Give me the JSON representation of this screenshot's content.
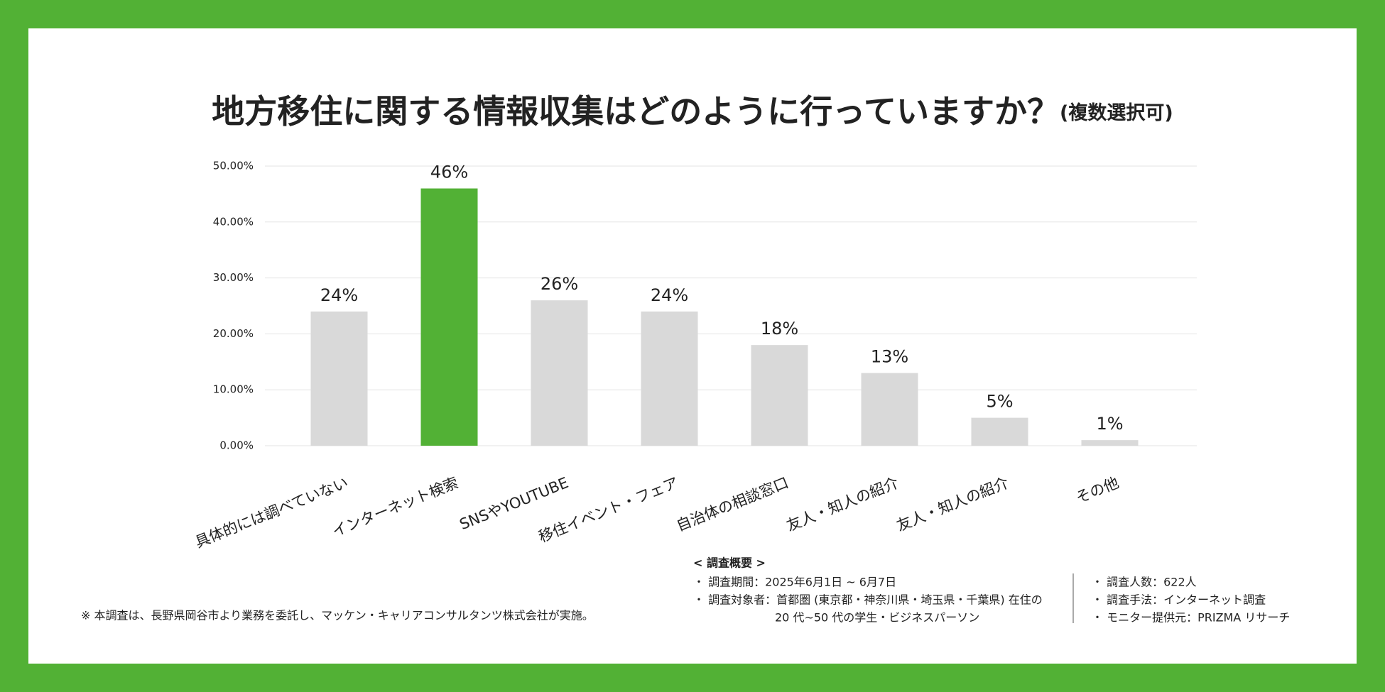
{
  "chart_data": {
    "type": "bar",
    "title": "地方移住に関する情報収集はどのように行っていますか？",
    "subtitle": "(複数選択可)",
    "categories": [
      "具体的には調べていない",
      "インターネット検索",
      "SNSやYOUTUBE",
      "移住イベント・フェア",
      "自治体の相談窓口",
      "友人・知人の紹介",
      "友人・知人の紹介",
      "その他"
    ],
    "values": [
      24,
      46,
      26,
      24,
      18,
      13,
      5,
      1
    ],
    "value_labels": [
      "24%",
      "46%",
      "26%",
      "24%",
      "18%",
      "13%",
      "5%",
      "1%"
    ],
    "colors": [
      "#d9d9d9",
      "#52b135",
      "#d9d9d9",
      "#d9d9d9",
      "#d9d9d9",
      "#d9d9d9",
      "#d9d9d9",
      "#d9d9d9"
    ],
    "ylim": [
      0,
      50
    ],
    "yticks": [
      {
        "value": 0,
        "label": "0.00%"
      },
      {
        "value": 10,
        "label": "10.00%"
      },
      {
        "value": 20,
        "label": "20.00%"
      },
      {
        "value": 30,
        "label": "30.00%"
      },
      {
        "value": 40,
        "label": "40.00%"
      },
      {
        "value": 50,
        "label": "50.00%"
      }
    ],
    "grid": true
  },
  "footer": {
    "note": "※ 本調査は、長野県岡谷市より業務を委託し、マッケン・キャリアコンサルタンツ株式会社が実施。",
    "survey_heading": "< 調査概要 >",
    "survey_lines": [
      "・ 調査期間：2025年6月1日 ~ 6月7日",
      "・ 調査対象者：首都圏 (東京都・神奈川県・埼玉県・千葉県) 在住の",
      "20 代~50 代の学生・ビジネスパーソン"
    ],
    "details": [
      "・ 調査人数：622人",
      "・ 調査手法：インターネット調査",
      "・ モニター提供元：PRIZMA リサーチ"
    ]
  }
}
